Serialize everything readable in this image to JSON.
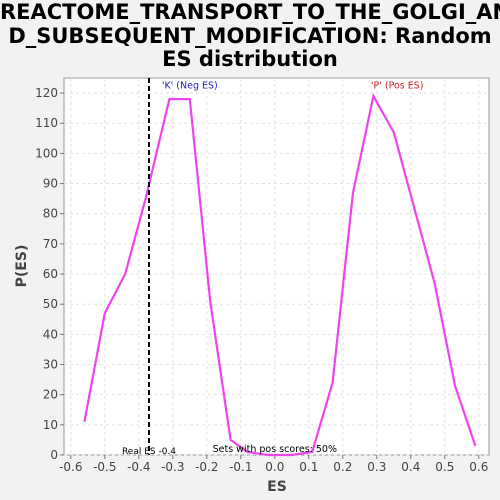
{
  "title_lines": [
    "REACTOME_TRANSPORT_TO_THE_GOLGI_AN",
    "D_SUBSEQUENT_MODIFICATION: Random",
    "ES distribution"
  ],
  "chart_data": {
    "type": "line",
    "title": "REACTOME_TRANSPORT_TO_THE_GOLGI_AND_SUBSEQUENT_MODIFICATION: Random ES distribution",
    "xlabel": "ES",
    "ylabel": "P(ES)",
    "xlim": [
      -0.62,
      0.63
    ],
    "ylim": [
      0,
      125
    ],
    "xticks": [
      -0.6,
      -0.5,
      -0.4,
      -0.3,
      -0.2,
      -0.1,
      0.0,
      0.1,
      0.2,
      0.3,
      0.4,
      0.5,
      0.6
    ],
    "xtick_labels": [
      "-0.6",
      "-0.5",
      "-0.4",
      "-0.3",
      "-0.2",
      "-0.1",
      "0.0",
      "0.1",
      "0.2",
      "0.3",
      "0.4",
      "0.5",
      "0.6"
    ],
    "yticks": [
      0,
      10,
      20,
      30,
      40,
      50,
      60,
      70,
      80,
      90,
      100,
      110,
      120
    ],
    "ytick_labels": [
      "0",
      "10",
      "20",
      "30",
      "40",
      "50",
      "60",
      "70",
      "80",
      "90",
      "100",
      "110",
      "120"
    ],
    "grid": true,
    "series": [
      {
        "color": "#ee44ee",
        "x": [
          -0.56,
          -0.5,
          -0.44,
          -0.38,
          -0.31,
          -0.25,
          -0.19,
          -0.13,
          -0.08,
          -0.02,
          0.05,
          0.11,
          0.17,
          0.23,
          0.29,
          0.35,
          0.41,
          0.47,
          0.53,
          0.59
        ],
        "y": [
          11,
          47,
          60,
          85,
          118,
          118,
          51,
          5,
          1,
          0,
          0,
          1,
          24,
          87,
          119,
          107,
          82,
          57,
          23,
          3
        ]
      }
    ],
    "real_es": {
      "x": -0.37,
      "label": "Real ES -0.4",
      "color": "#000000"
    },
    "annotations": [
      {
        "text": "'K' (Neg ES)",
        "x": -0.25,
        "y": 121.5,
        "color": "#2222bb"
      },
      {
        "text": "'P' (Pos ES)",
        "x": 0.36,
        "y": 121.5,
        "color": "#cc2222"
      },
      {
        "text": "Sets with pos scores: 50%",
        "x": 0.0,
        "y": 1,
        "color": "#000000"
      }
    ]
  }
}
